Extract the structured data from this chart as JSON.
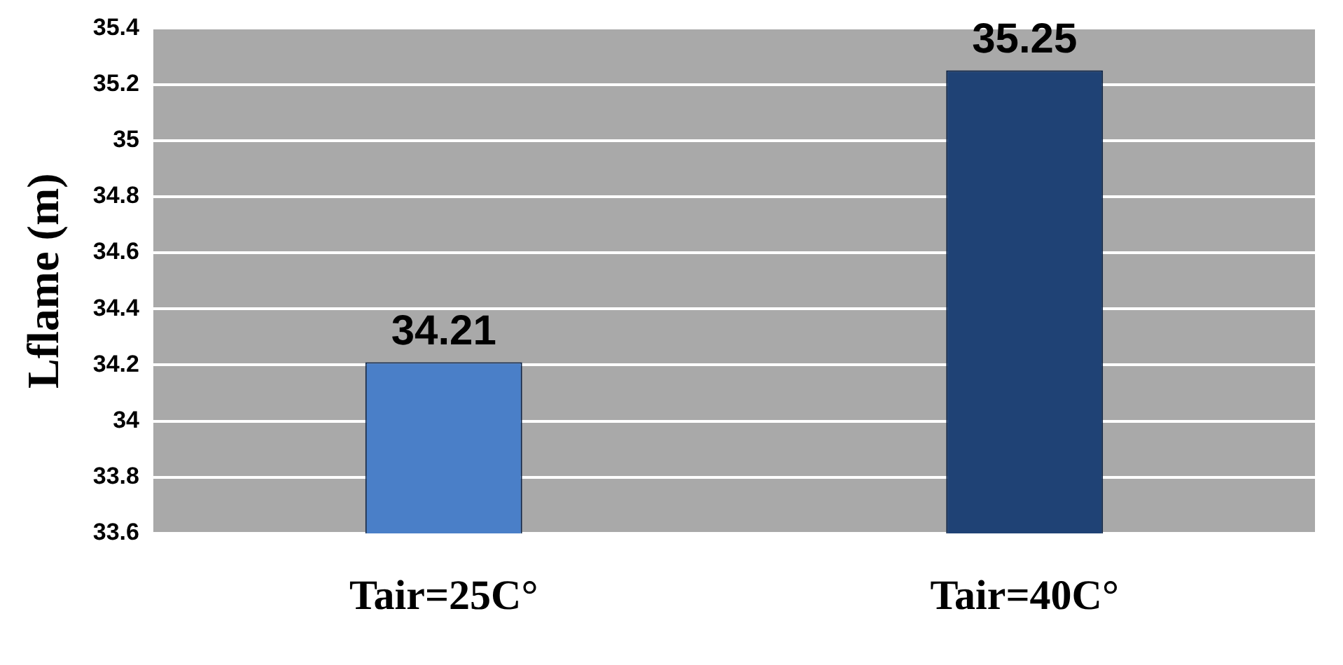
{
  "chart_data": {
    "type": "bar",
    "ylabel": "Lflame (m)",
    "categories": [
      "Tair=25C°",
      "Tair=40C°"
    ],
    "values": [
      34.21,
      35.25
    ],
    "colors": [
      "#4a7fc8",
      "#1f4275"
    ],
    "ylim": [
      33.6,
      35.4
    ],
    "yticks": [
      33.6,
      33.8,
      34,
      34.2,
      34.4,
      34.6,
      34.8,
      35,
      35.2,
      35.4
    ],
    "grid": "y",
    "data_labels": true
  }
}
